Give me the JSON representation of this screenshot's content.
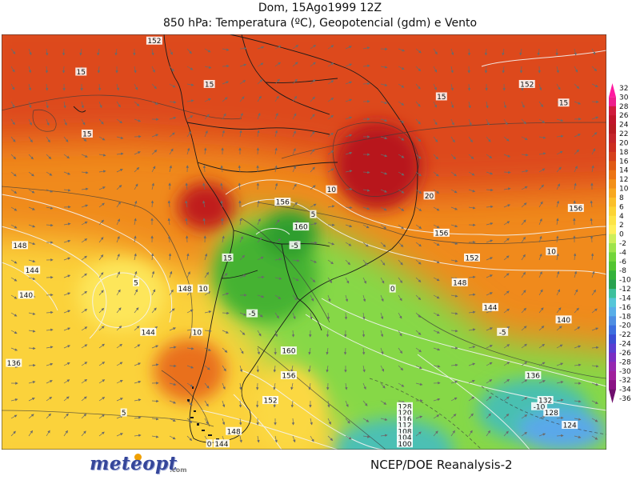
{
  "header": {
    "date_line": "Dom, 15Ago1999 12Z",
    "product_line": "850 hPa: Temperatura (ºC), Geopotencial (gdm) e Vento"
  },
  "colorbar": {
    "ticks": [
      32,
      30,
      28,
      26,
      24,
      22,
      20,
      18,
      16,
      14,
      12,
      10,
      8,
      6,
      4,
      2,
      0,
      -2,
      -4,
      -6,
      -8,
      -10,
      -12,
      -14,
      -16,
      -18,
      -20,
      -22,
      -24,
      -26,
      -28,
      -30,
      -32,
      -34,
      -36
    ],
    "colors": [
      "#ff1aa0",
      "#ee1e8c",
      "#d01a3c",
      "#c0142a",
      "#b81a22",
      "#c4242a",
      "#cc2d20",
      "#d6401c",
      "#e05a14",
      "#ec7414",
      "#f39018",
      "#f8a820",
      "#fbc02a",
      "#fcd435",
      "#fde446",
      "#fff05a",
      "#cdef5a",
      "#9ee44c",
      "#72d53a",
      "#52c530",
      "#34b23a",
      "#28a250",
      "#3dc09c",
      "#55c6d8",
      "#58aee8",
      "#4e8ee2",
      "#3c6ede",
      "#3a4ed4",
      "#5a3ed2",
      "#7a2ec2",
      "#9628b0",
      "#a0209c",
      "#8a1284",
      "#6e0e6c",
      "#500a50"
    ]
  },
  "map": {
    "temperature_labels": [
      {
        "text": "15",
        "lon": -99,
        "lat": 8
      },
      {
        "text": "15",
        "lon": -78,
        "lat": 6
      },
      {
        "text": "15",
        "lon": -98,
        "lat": -2
      },
      {
        "text": "15",
        "lon": -40,
        "lat": 4
      },
      {
        "text": "15",
        "lon": -20,
        "lat": 3
      },
      {
        "text": "20",
        "lon": -42,
        "lat": -12
      },
      {
        "text": "10",
        "lon": -58,
        "lat": -11
      },
      {
        "text": "15",
        "lon": -75,
        "lat": -22
      },
      {
        "text": "5",
        "lon": -61,
        "lat": -15
      },
      {
        "text": "-5",
        "lon": -64,
        "lat": -20
      },
      {
        "text": "5",
        "lon": -90,
        "lat": -26
      },
      {
        "text": "10",
        "lon": -79,
        "lat": -27
      },
      {
        "text": "10",
        "lon": -80,
        "lat": -34
      },
      {
        "text": "-5",
        "lon": -71,
        "lat": -31
      },
      {
        "text": "0",
        "lon": -48,
        "lat": -27
      },
      {
        "text": "10",
        "lon": -22,
        "lat": -21
      },
      {
        "text": "-5",
        "lon": -30,
        "lat": -34
      },
      {
        "text": "5",
        "lon": -92,
        "lat": -47
      },
      {
        "text": "-10",
        "lon": -24,
        "lat": -46
      }
    ],
    "geopotential_labels": [
      {
        "text": "152",
        "lon": -26,
        "lat": 6
      },
      {
        "text": "156",
        "lon": -66,
        "lat": -13
      },
      {
        "text": "160",
        "lon": -63,
        "lat": -17
      },
      {
        "text": "156",
        "lon": -40,
        "lat": -18
      },
      {
        "text": "156",
        "lon": -18,
        "lat": -14
      },
      {
        "text": "148",
        "lon": -109,
        "lat": -20
      },
      {
        "text": "144",
        "lon": -107,
        "lat": -24
      },
      {
        "text": "140",
        "lon": -108,
        "lat": -28
      },
      {
        "text": "148",
        "lon": -82,
        "lat": -27
      },
      {
        "text": "144",
        "lon": -88,
        "lat": -34
      },
      {
        "text": "152",
        "lon": -35,
        "lat": -22
      },
      {
        "text": "148",
        "lon": -37,
        "lat": -26
      },
      {
        "text": "144",
        "lon": -32,
        "lat": -30
      },
      {
        "text": "140",
        "lon": -20,
        "lat": -32
      },
      {
        "text": "136",
        "lon": -110,
        "lat": -39
      },
      {
        "text": "160",
        "lon": -65,
        "lat": -37
      },
      {
        "text": "156",
        "lon": -65,
        "lat": -41
      },
      {
        "text": "152",
        "lon": -68,
        "lat": -45
      },
      {
        "text": "148",
        "lon": -74,
        "lat": -50
      },
      {
        "text": "144",
        "lon": -76,
        "lat": -52
      },
      {
        "text": "0",
        "lon": -78,
        "lat": -52
      },
      {
        "text": "136",
        "lon": -25,
        "lat": -41
      },
      {
        "text": "132",
        "lon": -23,
        "lat": -45
      },
      {
        "text": "128",
        "lon": -22,
        "lat": -47
      },
      {
        "text": "124",
        "lon": -19,
        "lat": -49
      },
      {
        "text": "128",
        "lon": -46,
        "lat": -46
      },
      {
        "text": "120",
        "lon": -46,
        "lat": -47
      },
      {
        "text": "116",
        "lon": -46,
        "lat": -48
      },
      {
        "text": "112",
        "lon": -46,
        "lat": -49
      },
      {
        "text": "108",
        "lon": -46,
        "lat": -50
      },
      {
        "text": "104",
        "lon": -46,
        "lat": -51
      },
      {
        "text": "100",
        "lon": -46,
        "lat": -52
      },
      {
        "text": "152",
        "lon": -87,
        "lat": 13
      }
    ]
  },
  "credits": {
    "logo_word": "meteopt",
    "logo_suffix": ".com",
    "source": "NCEP/DOE Reanalysis-2"
  }
}
